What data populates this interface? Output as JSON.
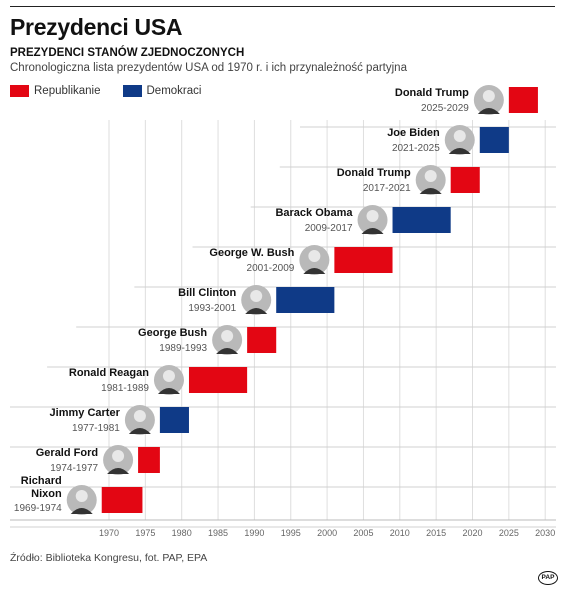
{
  "header": {
    "title": "Prezydenci USA",
    "subtitle": "PREZYDENCI STANÓW ZJEDNOCZONYCH",
    "description": "Chronologiczna lista prezydentów USA od 1970 r. i ich przynależność partyjna"
  },
  "legend": [
    {
      "label": "Republikanie",
      "color": "#e30613"
    },
    {
      "label": "Demokraci",
      "color": "#0f3a87"
    }
  ],
  "chart_data": {
    "type": "bar",
    "orientation": "horizontal-timeline",
    "xlim": [
      1968,
      2031
    ],
    "x_ticks": [
      1970,
      1975,
      1980,
      1985,
      1990,
      1995,
      2000,
      2005,
      2010,
      2015,
      2020,
      2025,
      2030
    ],
    "grid": true,
    "legend_position": "top-left",
    "colors": {
      "Republikanie": "#e30613",
      "Demokraci": "#0f3a87"
    },
    "presidents": [
      {
        "name": [
          "Donald Trump"
        ],
        "years": "2025-2029",
        "start": 2025,
        "end": 2029,
        "party": "Republikanie"
      },
      {
        "name": [
          "Joe Biden"
        ],
        "years": "2021-2025",
        "start": 2021,
        "end": 2025,
        "party": "Demokraci"
      },
      {
        "name": [
          "Donald Trump"
        ],
        "years": "2017-2021",
        "start": 2017,
        "end": 2021,
        "party": "Republikanie"
      },
      {
        "name": [
          "Barack Obama"
        ],
        "years": "2009-2017",
        "start": 2009,
        "end": 2017,
        "party": "Demokraci"
      },
      {
        "name": [
          "George W. Bush"
        ],
        "years": "2001-2009",
        "start": 2001,
        "end": 2009,
        "party": "Republikanie"
      },
      {
        "name": [
          "Bill Clinton"
        ],
        "years": "1993-2001",
        "start": 1993,
        "end": 2001,
        "party": "Demokraci"
      },
      {
        "name": [
          "George Bush"
        ],
        "years": "1989-1993",
        "start": 1989,
        "end": 1993,
        "party": "Republikanie"
      },
      {
        "name": [
          "Ronald Reagan"
        ],
        "years": "1981-1989",
        "start": 1981,
        "end": 1989,
        "party": "Republikanie"
      },
      {
        "name": [
          "Jimmy Carter"
        ],
        "years": "1977-1981",
        "start": 1977,
        "end": 1981,
        "party": "Demokraci"
      },
      {
        "name": [
          "Gerald Ford"
        ],
        "years": "1974-1977",
        "start": 1974,
        "end": 1977,
        "party": "Republikanie"
      },
      {
        "name": [
          "Richard",
          "Nixon"
        ],
        "years": "1969-1974",
        "start": 1969,
        "end": 1974.6,
        "party": "Republikanie"
      }
    ]
  },
  "footer": {
    "source": "Źródło: Biblioteka Kongresu, fot. PAP, EPA",
    "logo_text": "PAP"
  }
}
